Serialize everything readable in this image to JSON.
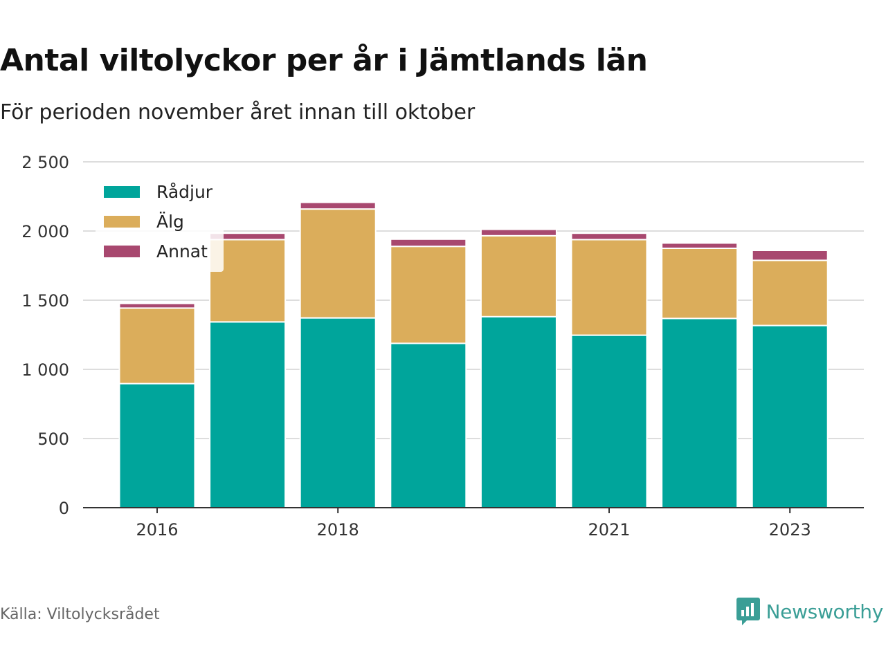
{
  "header": {
    "title": "Antal viltolyckor per år i Jämtlands län",
    "subtitle": "För perioden november året innan till oktober"
  },
  "footer": {
    "source": "Källa: Viltolycksrådet",
    "brand": "Newsworthy",
    "brand_color": "#3a9e96"
  },
  "chart_data": {
    "type": "bar",
    "stacked": true,
    "categories": [
      "2016",
      "2017",
      "2018",
      "2019",
      "2020",
      "2021",
      "2022",
      "2023"
    ],
    "x_tick_labels": [
      "2016",
      "",
      "2018",
      "",
      "",
      "2021",
      "",
      "2023"
    ],
    "series": [
      {
        "name": "Rådjur",
        "color": "#00a59b",
        "values": [
          897,
          1343,
          1372,
          1188,
          1381,
          1247,
          1368,
          1317
        ]
      },
      {
        "name": "Älg",
        "color": "#dbad5b",
        "values": [
          546,
          595,
          787,
          701,
          585,
          691,
          507,
          471
        ]
      },
      {
        "name": "Annat",
        "color": "#a8486f",
        "values": [
          33,
          46,
          48,
          52,
          46,
          46,
          38,
          72
        ]
      }
    ],
    "ylim": [
      0,
      2500
    ],
    "y_ticks": [
      0,
      500,
      1000,
      1500,
      2000,
      2500
    ],
    "y_tick_labels": [
      "0",
      "500",
      "1 000",
      "1 500",
      "2 000",
      "2 500"
    ],
    "grid": true,
    "legend_position": "top-left"
  }
}
